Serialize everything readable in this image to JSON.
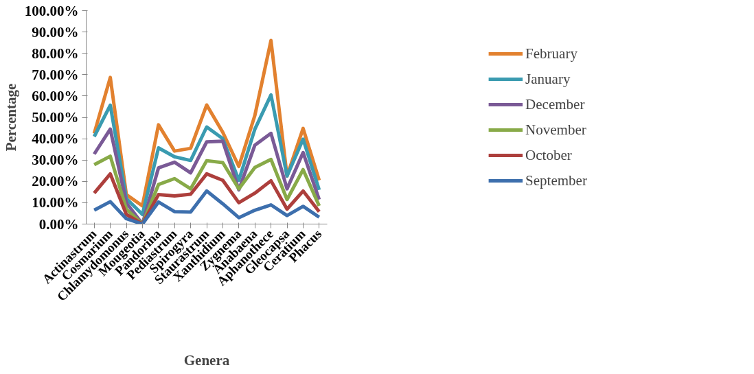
{
  "chart_data": {
    "type": "line",
    "xlabel": "Genera",
    "ylabel": "Percentage",
    "categories": [
      "Actinastrum",
      "Cosmarium",
      "Chlamydomonus",
      "Mougeotia",
      "Pandorina",
      "Pediastrum",
      "Spirogyra",
      "Staurastrum",
      "Xanthidium",
      "Zygnema",
      "Anabaena",
      "Aphanothece",
      "Gleocapsa",
      "Ceratium",
      "Phacus"
    ],
    "series": [
      {
        "name": "February",
        "color": "#e2812f",
        "values": [
          42.5,
          68.7,
          13.8,
          8.5,
          46.5,
          34.2,
          35.5,
          55.8,
          43,
          27,
          51,
          86,
          22.5,
          44.8,
          20.5
        ]
      },
      {
        "name": "January",
        "color": "#3a9bb0",
        "values": [
          41,
          55.7,
          12,
          4.5,
          35.7,
          31.5,
          29.8,
          45.5,
          40,
          20.5,
          44.5,
          60.5,
          22.5,
          39.8,
          16
        ]
      },
      {
        "name": "December",
        "color": "#7a5a96",
        "values": [
          32.8,
          44.5,
          10,
          0,
          26.3,
          29,
          24,
          38.5,
          38.8,
          16,
          37,
          42.5,
          16.5,
          33.5,
          11.5
        ]
      },
      {
        "name": "November",
        "color": "#88aa48",
        "values": [
          27.8,
          31.8,
          7,
          0,
          18.5,
          21.3,
          16.5,
          29.7,
          28.8,
          16.5,
          26.5,
          30.3,
          11.5,
          25.5,
          8.5
        ]
      },
      {
        "name": "October",
        "color": "#ad3f3c",
        "values": [
          14.5,
          23.5,
          4.5,
          0,
          13.8,
          13.2,
          14,
          23.5,
          20.5,
          10,
          14.5,
          20.3,
          7,
          15.5,
          5.8
        ]
      },
      {
        "name": "September",
        "color": "#3d6fad",
        "values": [
          6.5,
          10.5,
          2.5,
          0,
          10.3,
          5.8,
          5.6,
          15.5,
          9.5,
          3,
          6.5,
          9,
          4,
          8.3,
          3.2
        ]
      }
    ],
    "ylim": [
      0,
      100
    ],
    "yticks": [
      {
        "value": 0,
        "label": "0.00%"
      },
      {
        "value": 10,
        "label": "10.00%"
      },
      {
        "value": 20,
        "label": "20.00%"
      },
      {
        "value": 30,
        "label": "30.00%"
      },
      {
        "value": 40,
        "label": "40.00%"
      },
      {
        "value": 50,
        "label": "50.00%"
      },
      {
        "value": 60,
        "label": "60.00%"
      },
      {
        "value": 70,
        "label": "70.00%"
      },
      {
        "value": 80,
        "label": "80.00%"
      },
      {
        "value": 90,
        "label": "90.00%"
      },
      {
        "value": 100,
        "label": "100.00%"
      }
    ],
    "grid": false,
    "legend": "right",
    "marker": "none",
    "line_style": "solid"
  }
}
